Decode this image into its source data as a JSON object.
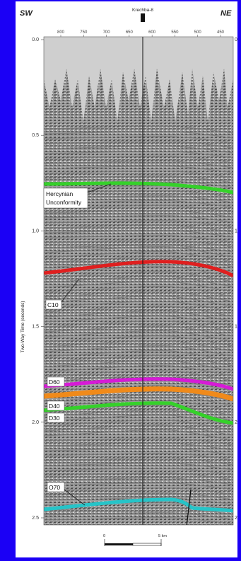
{
  "figure": {
    "left_label": "SW",
    "right_label": "NE",
    "well_name": "Krechba-8",
    "y_axis_label": "Two-Way Time (seconds)",
    "y_ticks": [
      "0.0",
      "0.5",
      "1.0",
      "1.5",
      "2.0",
      "2.5"
    ],
    "right_ticks": [
      "0",
      "1",
      "1",
      "2",
      "2"
    ],
    "trace_ticks": [
      "800",
      "750",
      "700",
      "650",
      "600",
      "550",
      "500",
      "450"
    ],
    "scale_start": "0",
    "scale_end": "5 km"
  },
  "horizons": [
    {
      "label": "Hercynian Unconformity",
      "line1": "Hercynian",
      "line2": "Unconformity",
      "color": "#35d12a"
    },
    {
      "label": "C10",
      "color": "#e01f1f"
    },
    {
      "label": "D60",
      "color": "#d71ad7"
    },
    {
      "label": "D40",
      "color": "#f08a1a"
    },
    {
      "label": "D30",
      "color": "#35d12a"
    },
    {
      "label": "O70",
      "color": "#26c4c8"
    }
  ]
}
